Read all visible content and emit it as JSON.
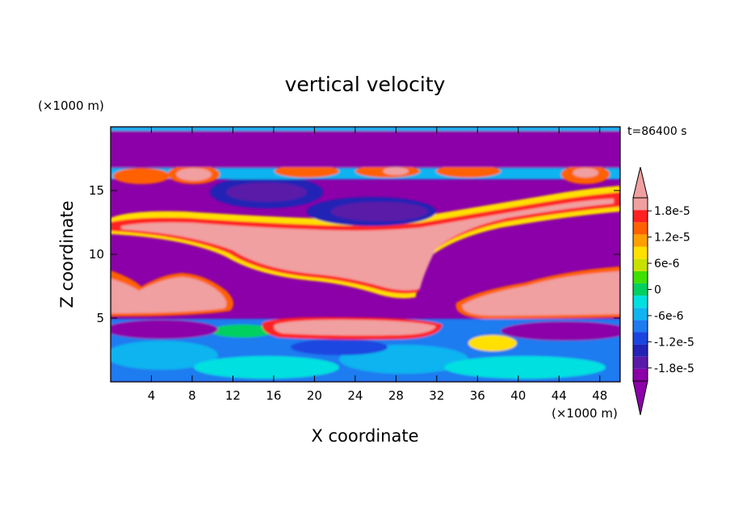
{
  "chart_data": {
    "type": "heatmap",
    "title": "vertical velocity",
    "xlabel": "X coordinate",
    "ylabel": "Z coordinate",
    "x_unit": "(×1000 m)",
    "y_unit": "(×1000 m)",
    "time_label": "t=86400 s",
    "xlim": [
      0,
      50
    ],
    "ylim": [
      0,
      20
    ],
    "x_ticks": [
      4,
      8,
      12,
      16,
      20,
      24,
      28,
      32,
      36,
      40,
      44,
      48
    ],
    "y_ticks": [
      5,
      10,
      15
    ],
    "colorbar": {
      "vmin": -2.1e-05,
      "vmax": 2.1e-05,
      "levels": 14,
      "extend": "both",
      "tick_values": [
        1.8e-05,
        1.2e-05,
        6e-06,
        0,
        -6e-06,
        -1.2e-05,
        -1.8e-05
      ],
      "tick_labels": [
        "1.8e-5",
        "1.2e-5",
        "6e-6",
        "0",
        "-6e-6",
        "-1.2e-5",
        "-1.8e-5"
      ],
      "colors": [
        "#8b00a8",
        "#5a1aa8",
        "#2323b5",
        "#1c46e0",
        "#1e7bf0",
        "#10b4f0",
        "#00e0e0",
        "#00d060",
        "#40e000",
        "#c8e000",
        "#ffe000",
        "#ffa000",
        "#ff6000",
        "#ff2020",
        "#f0a0a0"
      ]
    }
  }
}
